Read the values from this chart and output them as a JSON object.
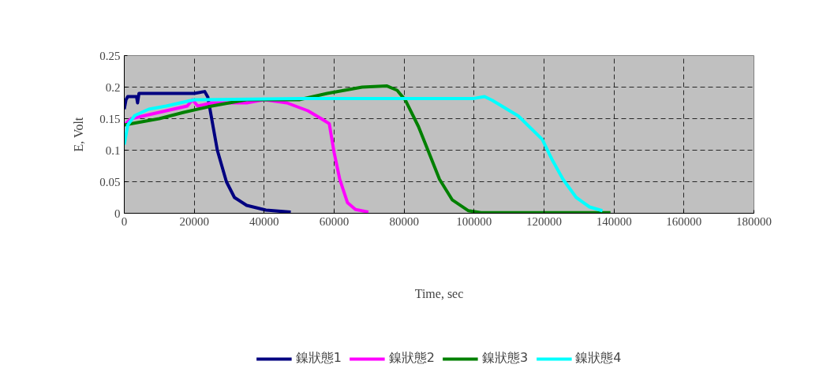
{
  "chart_data": {
    "type": "line",
    "xlabel": "Time, sec",
    "ylabel": "E, Volt",
    "xlim": [
      0,
      180000
    ],
    "xticks": [
      0,
      20000,
      40000,
      60000,
      80000,
      100000,
      120000,
      140000,
      160000,
      180000
    ],
    "ylim": [
      0,
      0.25
    ],
    "yticks": [
      0,
      0.05,
      0.1,
      0.15,
      0.2,
      0.25
    ],
    "grid": true,
    "legend": "bottom",
    "marker": "none",
    "line_style": "solid",
    "series": [
      {
        "name": "鎳狀態1",
        "color": "#000080",
        "x": [
          0,
          500,
          1000,
          3500,
          3800,
          4200,
          5000,
          10000,
          15000,
          20000,
          23000,
          23900,
          24700,
          26600,
          29200,
          31500,
          35000,
          40500,
          47600
        ],
        "values": [
          0.165,
          0.18,
          0.185,
          0.185,
          0.175,
          0.19,
          0.19,
          0.19,
          0.19,
          0.19,
          0.193,
          0.184,
          0.159,
          0.1,
          0.05,
          0.025,
          0.0125,
          0.005,
          0.002
        ]
      },
      {
        "name": "鎳狀態2",
        "color": "#ff00ff",
        "x": [
          0,
          2000,
          10000,
          18000,
          19500,
          21000,
          25000,
          35000,
          40000,
          46500,
          52500,
          56300,
          58600,
          60000,
          61600,
          63800,
          66100,
          69800
        ],
        "values": [
          0.14,
          0.15,
          0.16,
          0.17,
          0.18,
          0.17,
          0.175,
          0.175,
          0.18,
          0.175,
          0.1625,
          0.15,
          0.142,
          0.096,
          0.054,
          0.017,
          0.006,
          0.002
        ]
      },
      {
        "name": "鎳狀態3",
        "color": "#008000",
        "x": [
          0,
          10000,
          17000,
          25000,
          35000,
          50000,
          58000,
          68000,
          75000,
          78000,
          80400,
          84100,
          87100,
          90100,
          93800,
          98400,
          102000,
          139000
        ],
        "values": [
          0.14,
          0.15,
          0.16,
          0.17,
          0.18,
          0.18,
          0.19,
          0.2,
          0.202,
          0.195,
          0.179,
          0.1375,
          0.096,
          0.054,
          0.021,
          0.004,
          0.001,
          0.001
        ]
      },
      {
        "name": "鎳狀態4",
        "color": "#00ffff",
        "x": [
          0,
          1000,
          3000,
          7000,
          12000,
          20000,
          50000,
          100000,
          103000,
          105200,
          112700,
          119500,
          122400,
          125400,
          129200,
          133000,
          136700
        ],
        "values": [
          0.109,
          0.14,
          0.155,
          0.165,
          0.17,
          0.18,
          0.182,
          0.182,
          0.185,
          0.179,
          0.154,
          0.117,
          0.084,
          0.054,
          0.025,
          0.01,
          0.004
        ]
      }
    ]
  }
}
